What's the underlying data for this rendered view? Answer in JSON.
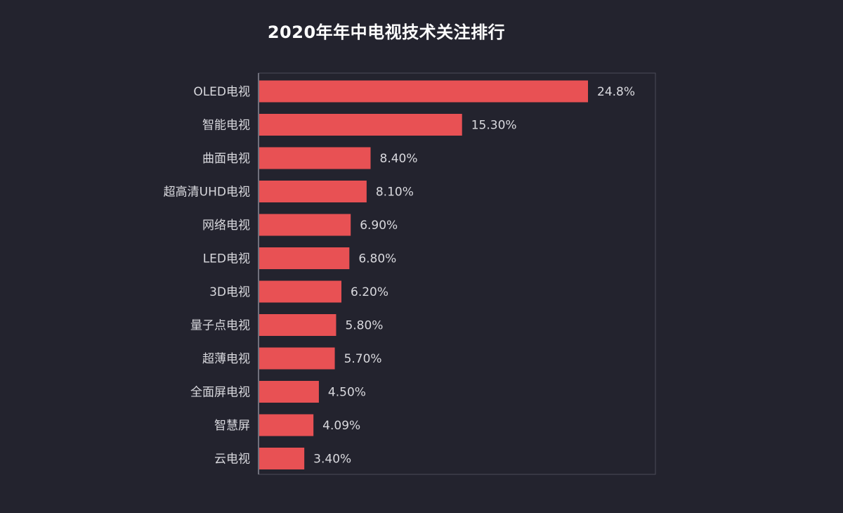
{
  "chart_data": {
    "type": "bar",
    "orientation": "horizontal",
    "title": "2020年年中电视技术关注排行",
    "xlabel": "",
    "ylabel": "",
    "xlim": [
      0,
      30
    ],
    "grid": false,
    "categories": [
      "OLED电视",
      "智能电视",
      "曲面电视",
      "超高清UHD电视",
      "网络电视",
      "LED电视",
      "3D电视",
      "量子点电视",
      "超薄电视",
      "全面屏电视",
      "智慧屏",
      "云电视"
    ],
    "values": [
      24.8,
      15.3,
      8.4,
      8.1,
      6.9,
      6.8,
      6.2,
      5.8,
      5.7,
      4.5,
      4.09,
      3.4
    ],
    "value_labels": [
      "24.8%",
      "15.30%",
      "8.40%",
      "8.10%",
      "6.90%",
      "6.80%",
      "6.20%",
      "5.80%",
      "5.70%",
      "4.50%",
      "4.09%",
      "3.40%"
    ],
    "colors": {
      "bar": "#e85154",
      "background": "#23232e",
      "frame": "#4b4b58",
      "text": "#d9d9de",
      "title": "#ffffff"
    }
  }
}
